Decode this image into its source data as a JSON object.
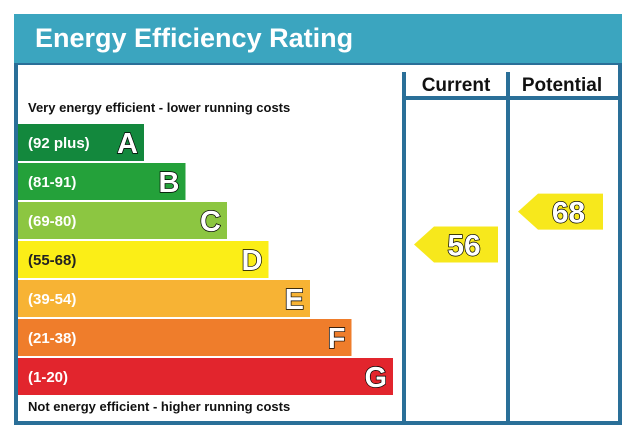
{
  "title": "Energy Efficiency Rating",
  "top_label": "Very energy efficient - lower running costs",
  "bottom_label": "Not energy efficient - higher running costs",
  "colors": {
    "header_bg": "#3ba5bf",
    "frame": "#2a6f98",
    "arrow": "#f7e81c"
  },
  "chart_data": {
    "type": "bar",
    "categories": [
      "A",
      "B",
      "C",
      "D",
      "E",
      "F",
      "G"
    ],
    "bands": [
      {
        "letter": "A",
        "range": "(92 plus)",
        "color": "#13883d"
      },
      {
        "letter": "B",
        "range": "(81-91)",
        "color": "#24a13a"
      },
      {
        "letter": "C",
        "range": "(69-80)",
        "color": "#8cc641"
      },
      {
        "letter": "D",
        "range": "(55-68)",
        "color": "#fbee17"
      },
      {
        "letter": "E",
        "range": "(39-54)",
        "color": "#f7b334"
      },
      {
        "letter": "F",
        "range": "(21-38)",
        "color": "#ef7d2b"
      },
      {
        "letter": "G",
        "range": "(1-20)",
        "color": "#e2252d"
      }
    ],
    "columns": [
      "Current",
      "Potential"
    ],
    "current": {
      "label": "Current",
      "value": 56,
      "band": "D"
    },
    "potential": {
      "label": "Potential",
      "value": 68,
      "band": "D"
    }
  }
}
